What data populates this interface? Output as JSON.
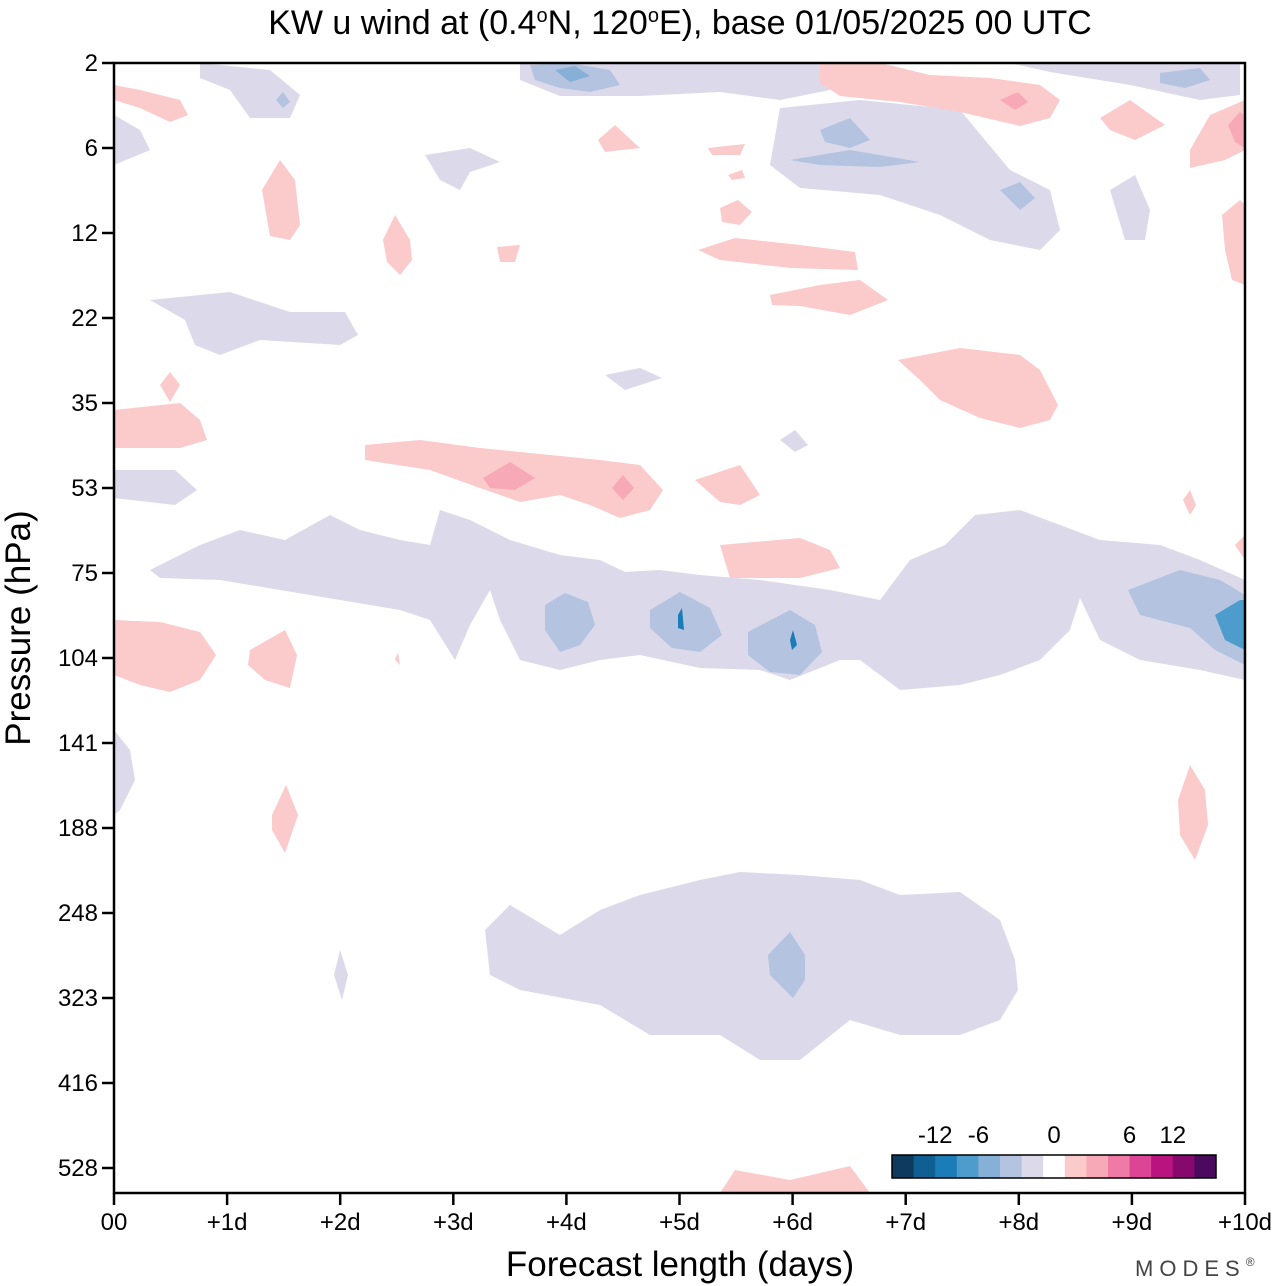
{
  "chart_data": {
    "type": "contour",
    "title": "KW u wind at (0.4°N, 120°E),  base 01/05/2025  00 UTC",
    "title_parts": {
      "prefix": "KW u wind at (0.4",
      "deg1": "o",
      "mid": "N, 120",
      "deg2": "o",
      "suffix": "E),  base 01/05/2025  00 UTC"
    },
    "xlabel": "Forecast length (days)",
    "ylabel": "Pressure (hPa)",
    "x_ticks": [
      "00",
      "+1d",
      "+2d",
      "+3d",
      "+4d",
      "+5d",
      "+6d",
      "+7d",
      "+8d",
      "+9d",
      "+10d"
    ],
    "xlim_days": [
      0,
      10
    ],
    "y_ticks": [
      "2",
      "6",
      "12",
      "22",
      "35",
      "53",
      "75",
      "104",
      "141",
      "188",
      "248",
      "323",
      "416",
      "528"
    ],
    "y_scale": "pressure (top 2 hPa, bottom ~650 hPa)",
    "colorbar": {
      "labels": [
        "-12",
        "-6",
        "0",
        "6",
        "12"
      ],
      "colors": [
        "#0d3b5e",
        "#0f5f93",
        "#1a7db8",
        "#4d9ccb",
        "#86b0d6",
        "#b3c3e0",
        "#dcdaea",
        "#ffffff",
        "#fbcacb",
        "#f7a9b7",
        "#f07aa6",
        "#dc4496",
        "#b8137f",
        "#860a6e",
        "#4a0a5e"
      ]
    },
    "levels": {
      "neg_light": "#dcdaea",
      "neg_mid": "#b3c3e0",
      "neg_strong": "#86b0d6",
      "neg_core": "#1a7db8",
      "pos_light": "#fbcacb",
      "pos_mid": "#f7a9b7"
    },
    "features": [
      {
        "level": "neg_light",
        "days": [
          0.3,
          10
        ],
        "hPa": [
          70,
          110
        ]
      },
      {
        "level": "neg_mid",
        "days": [
          3.9,
          4.3
        ],
        "hPa": [
          85,
          100
        ]
      },
      {
        "level": "neg_mid",
        "days": [
          4.8,
          5.4
        ],
        "hPa": [
          85,
          100
        ]
      },
      {
        "level": "neg_mid",
        "days": [
          5.7,
          6.3
        ],
        "hPa": [
          90,
          110
        ]
      },
      {
        "level": "neg_mid",
        "days": [
          9.2,
          10
        ],
        "hPa": [
          80,
          100
        ]
      },
      {
        "level": "neg_light",
        "days": [
          3.3,
          8.0
        ],
        "hPa": [
          230,
          400
        ]
      },
      {
        "level": "pos_light",
        "days": [
          2.2,
          5.9
        ],
        "hPa": [
          45,
          58
        ]
      },
      {
        "level": "pos_mid",
        "days": [
          3.3,
          3.6
        ],
        "hPa": [
          50,
          55
        ]
      },
      {
        "level": "pos_light",
        "days": [
          0,
          0.9
        ],
        "hPa": [
          95,
          115
        ]
      },
      {
        "level": "pos_light",
        "days": [
          0,
          0.8
        ],
        "hPa": [
          35,
          45
        ]
      },
      {
        "level": "pos_light",
        "days": [
          6.8,
          8.3
        ],
        "hPa": [
          25,
          35
        ]
      },
      {
        "level": "pos_light",
        "days": [
          5.3,
          6.5
        ],
        "hPa": [
          12,
          14
        ]
      },
      {
        "level": "pos_light",
        "days": [
          5.8,
          6.8
        ],
        "hPa": [
          18,
          22
        ]
      },
      {
        "level": "neg_light",
        "days": [
          0.3,
          2.1
        ],
        "hPa": [
          18,
          26
        ]
      },
      {
        "level": "neg_light",
        "days": [
          3.5,
          8.5
        ],
        "hPa": [
          2,
          5
        ]
      },
      {
        "level": "pos_light",
        "days": [
          6.2,
          8.3
        ],
        "hPa": [
          2,
          5
        ]
      },
      {
        "level": "pos_light",
        "days": [
          9.4,
          9.6
        ],
        "hPa": [
          160,
          220
        ]
      },
      {
        "level": "pos_light",
        "days": [
          5.4,
          6.8
        ],
        "hPa": [
          600,
          650
        ]
      }
    ]
  },
  "branding": {
    "name": "MODES",
    "mark": "®"
  }
}
